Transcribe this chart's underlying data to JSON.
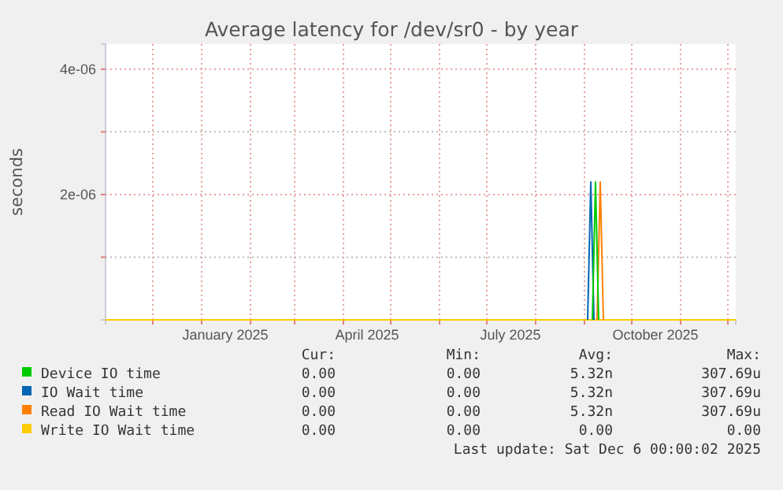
{
  "chart_data": {
    "type": "line",
    "title": "Average latency for /dev/sr0 - by year",
    "ylabel": "seconds",
    "x": [
      "2024-11-01",
      "2025-12-06"
    ],
    "series": [
      {
        "name": "Device IO time",
        "color": "#00cc00",
        "x": [
          "2025-09-06",
          "2025-09-08",
          "2025-09-10"
        ],
        "values": [
          0,
          2.2e-06,
          0
        ]
      },
      {
        "name": "IO Wait time",
        "color": "#0066b3",
        "x": [
          "2025-09-03",
          "2025-09-05",
          "2025-09-07"
        ],
        "values": [
          0,
          2.2e-06,
          0
        ]
      },
      {
        "name": "Read IO Wait time",
        "color": "#ff8000",
        "x": [
          "2025-09-09",
          "2025-09-11",
          "2025-09-13"
        ],
        "values": [
          0,
          2.2e-06,
          0
        ]
      },
      {
        "name": "Write IO Wait time",
        "color": "#ffcc00",
        "values": [
          0,
          0
        ]
      }
    ],
    "xlim": [
      "2024-11-01",
      "2025-12-06"
    ],
    "xticks": [
      {
        "value": "2024-12-01",
        "label": null
      },
      {
        "value": "2025-01-01",
        "label": null
      },
      {
        "value": "2025-01-16",
        "label": "January 2025"
      },
      {
        "value": "2025-02-01",
        "label": null
      },
      {
        "value": "2025-03-01",
        "label": null
      },
      {
        "value": "2025-04-01",
        "label": null
      },
      {
        "value": "2025-04-16",
        "label": "April 2025"
      },
      {
        "value": "2025-05-01",
        "label": null
      },
      {
        "value": "2025-06-01",
        "label": null
      },
      {
        "value": "2025-07-01",
        "label": null
      },
      {
        "value": "2025-07-16",
        "label": "July 2025"
      },
      {
        "value": "2025-08-01",
        "label": null
      },
      {
        "value": "2025-09-01",
        "label": null
      },
      {
        "value": "2025-10-01",
        "label": null
      },
      {
        "value": "2025-10-16",
        "label": "October 2025"
      },
      {
        "value": "2025-11-01",
        "label": null
      },
      {
        "value": "2025-12-01",
        "label": null
      }
    ],
    "ylim": [
      0,
      4.4e-06
    ],
    "yticks": [
      {
        "value": 1e-06,
        "label": null
      },
      {
        "value": 2e-06,
        "label": "2e-06"
      },
      {
        "value": 3e-06,
        "label": null
      },
      {
        "value": 4e-06,
        "label": "4e-06"
      }
    ],
    "grid": true,
    "legend": "bottom",
    "marker": "none",
    "line_style": "solid",
    "annotations": [
      "Cur:",
      "Min:",
      "Avg:",
      "Max:",
      "0.00",
      "0.00",
      "5.32n",
      "307.69u",
      "0.00",
      "0.00",
      "5.32n",
      "307.69u",
      "0.00",
      "0.00",
      "5.32n",
      "307.69u",
      "0.00",
      "0.00",
      "0.00",
      "0.00",
      "Last update: Sat Dec  6 00:00:02 2025"
    ]
  }
}
